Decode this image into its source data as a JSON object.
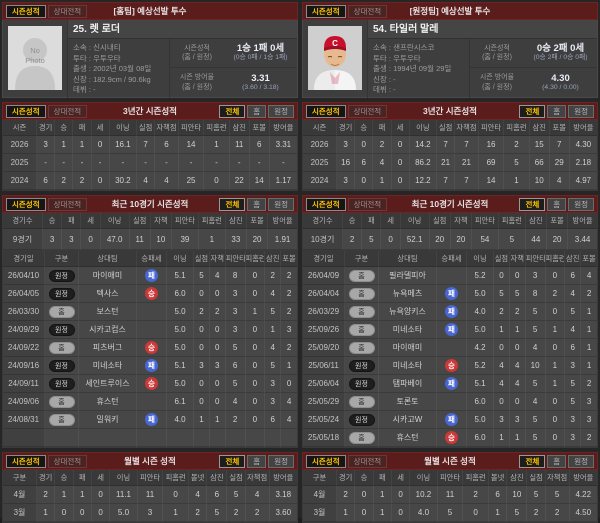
{
  "ui": {
    "tabs": {
      "season": "시즌성적",
      "h2h": "상대전적"
    },
    "filters": {
      "all": "전체",
      "home": "홈",
      "away": "원정"
    },
    "sections": {
      "three_year": "3년간 시즌성적",
      "recent10": "최근 10경기 시즌성적",
      "monthly": "월별 시즌 성적"
    },
    "info_labels": {
      "season_record": "시즌성적",
      "era": "시즌 방어율",
      "home_away": "(홈 / 원정)"
    },
    "colors": {
      "accent_yellow": "#ffc400",
      "bar_maroon": "#5b1c1c",
      "win_red": "#cd3838",
      "lose_blue": "#4967d2"
    }
  },
  "panels": [
    {
      "header_title": "[홈팀] 예상선발 투수",
      "player": {
        "name": "25. 렛 로더",
        "photo_placeholder": "No\nPhoto",
        "details": [
          {
            "label": "소속",
            "value": "신시내티"
          },
          {
            "label": "투타",
            "value": "우투우타"
          },
          {
            "label": "출생",
            "value": "2002년 03월 08일"
          },
          {
            "label": "신장",
            "value": "182.9cm / 90.6kg"
          },
          {
            "label": "데뷔",
            "value": "-"
          }
        ],
        "season_record": {
          "main": "1승 1패 0세",
          "sub": "(0승 0패 / 1승 1패)"
        },
        "season_era": {
          "main": "3.31",
          "sub": "(3.60 / 3.18)"
        }
      },
      "three_year": {
        "headers": [
          "시즌",
          "경기",
          "승",
          "패",
          "세",
          "이닝",
          "실점",
          "자책점",
          "피안타",
          "피홈런",
          "삼진",
          "포볼",
          "방어율"
        ],
        "rows": [
          [
            "2026",
            "3",
            "1",
            "1",
            "0",
            "16.1",
            "7",
            "6",
            "14",
            "1",
            "11",
            "6",
            "3.31"
          ],
          [
            "2025",
            "-",
            "-",
            "-",
            "-",
            "-",
            "-",
            "-",
            "-",
            "-",
            "-",
            "-",
            "-"
          ],
          [
            "2024",
            "6",
            "2",
            "2",
            "0",
            "30.2",
            "4",
            "4",
            "25",
            "0",
            "22",
            "14",
            "1.17"
          ]
        ]
      },
      "recent_summary": {
        "headers": [
          "경기수",
          "승",
          "패",
          "세",
          "이닝",
          "실점",
          "자책",
          "피안타",
          "피홈런",
          "삼진",
          "포볼",
          "방어율"
        ],
        "rows": [
          [
            "9경기",
            "3",
            "3",
            "0",
            "47.0",
            "11",
            "10",
            "39",
            "1",
            "33",
            "20",
            "1.91"
          ]
        ]
      },
      "game_log": {
        "headers": [
          "경기일",
          "구분",
          "상대팀",
          "승패세",
          "이닝",
          "실점",
          "자책",
          "피안타",
          "피홈런",
          "삼진",
          "포볼"
        ],
        "types": [
          "",
          "venue",
          "",
          "result",
          "",
          "",
          "",
          "",
          "",
          "",
          ""
        ],
        "rows": [
          [
            "26/04/10",
            "원정",
            "마이애미",
            "패",
            "5.1",
            "5",
            "4",
            "8",
            "0",
            "2",
            "2"
          ],
          [
            "26/04/05",
            "원정",
            "텍사스",
            "승",
            "6.0",
            "0",
            "0",
            "3",
            "0",
            "4",
            "2"
          ],
          [
            "26/03/30",
            "홈",
            "보스턴",
            "",
            "5.0",
            "2",
            "2",
            "3",
            "1",
            "5",
            "2"
          ],
          [
            "24/09/29",
            "원정",
            "시카고컵스",
            "",
            "5.0",
            "0",
            "0",
            "3",
            "0",
            "1",
            "3"
          ],
          [
            "24/09/22",
            "홈",
            "피츠버그",
            "승",
            "5.0",
            "0",
            "0",
            "5",
            "0",
            "4",
            "2"
          ],
          [
            "24/09/16",
            "원정",
            "미네소타",
            "패",
            "5.1",
            "3",
            "3",
            "6",
            "0",
            "5",
            "1"
          ],
          [
            "24/09/11",
            "원정",
            "세인트루이스",
            "승",
            "5.0",
            "0",
            "0",
            "5",
            "0",
            "3",
            "0"
          ],
          [
            "24/09/06",
            "홈",
            "휴스턴",
            "",
            "6.1",
            "0",
            "0",
            "4",
            "0",
            "3",
            "4"
          ],
          [
            "24/08/31",
            "홈",
            "밀워키",
            "패",
            "4.0",
            "1",
            "1",
            "2",
            "0",
            "6",
            "4"
          ],
          [
            "",
            "",
            "",
            "",
            "",
            "",
            "",
            "",
            "",
            "",
            ""
          ]
        ]
      },
      "monthly": {
        "headers": [
          "구분",
          "경기",
          "승",
          "패",
          "세",
          "이닝",
          "피안타",
          "피홈런",
          "볼넷",
          "삼진",
          "실점",
          "자책점",
          "방어율"
        ],
        "rows": [
          [
            "4월",
            "2",
            "1",
            "1",
            "0",
            "11.1",
            "11",
            "0",
            "4",
            "6",
            "5",
            "4",
            "3.18"
          ],
          [
            "3월",
            "1",
            "0",
            "0",
            "0",
            "5.0",
            "3",
            "1",
            "2",
            "5",
            "2",
            "2",
            "3.60"
          ]
        ]
      }
    },
    {
      "header_title": "[원정팀] 예상선발 투수",
      "player": {
        "name": "54. 타일러 말레",
        "photo_placeholder": "",
        "details": [
          {
            "label": "소속",
            "value": "샌프란시스코"
          },
          {
            "label": "투타",
            "value": "우투우타"
          },
          {
            "label": "출생",
            "value": "1994년 09월 29일"
          },
          {
            "label": "신장",
            "value": "-"
          },
          {
            "label": "데뷔",
            "value": "-"
          }
        ],
        "season_record": {
          "main": "0승 2패 0세",
          "sub": "(0승 2패 / 0승 0패)"
        },
        "season_era": {
          "main": "4.30",
          "sub": "(4.30 / 0.00)"
        }
      },
      "three_year": {
        "headers": [
          "시즌",
          "경기",
          "승",
          "패",
          "세",
          "이닝",
          "실점",
          "자책점",
          "피안타",
          "피홈런",
          "삼진",
          "포볼",
          "방어율"
        ],
        "rows": [
          [
            "2026",
            "3",
            "0",
            "2",
            "0",
            "14.2",
            "7",
            "7",
            "16",
            "2",
            "15",
            "7",
            "4.30"
          ],
          [
            "2025",
            "16",
            "6",
            "4",
            "0",
            "86.2",
            "21",
            "21",
            "69",
            "5",
            "66",
            "29",
            "2.18"
          ],
          [
            "2024",
            "3",
            "0",
            "1",
            "0",
            "12.2",
            "7",
            "7",
            "14",
            "1",
            "10",
            "4",
            "4.97"
          ]
        ]
      },
      "recent_summary": {
        "headers": [
          "경기수",
          "승",
          "패",
          "세",
          "이닝",
          "실점",
          "자책",
          "피안타",
          "피홈런",
          "삼진",
          "포볼",
          "방어율"
        ],
        "rows": [
          [
            "10경기",
            "2",
            "5",
            "0",
            "52.1",
            "20",
            "20",
            "54",
            "5",
            "44",
            "20",
            "3.44"
          ]
        ]
      },
      "game_log": {
        "headers": [
          "경기일",
          "구분",
          "상대팀",
          "승패세",
          "이닝",
          "실점",
          "자책",
          "피안타",
          "피홈런",
          "삼진",
          "포볼"
        ],
        "types": [
          "",
          "venue",
          "",
          "result",
          "",
          "",
          "",
          "",
          "",
          "",
          ""
        ],
        "rows": [
          [
            "26/04/09",
            "홈",
            "필라델피아",
            "",
            "5.2",
            "0",
            "0",
            "3",
            "0",
            "6",
            "4"
          ],
          [
            "26/04/04",
            "홈",
            "뉴욕메츠",
            "패",
            "5.0",
            "5",
            "5",
            "8",
            "2",
            "4",
            "2"
          ],
          [
            "26/03/29",
            "홈",
            "뉴욕양키스",
            "패",
            "4.0",
            "2",
            "2",
            "5",
            "0",
            "5",
            "1"
          ],
          [
            "25/09/26",
            "홈",
            "미네소타",
            "패",
            "5.0",
            "1",
            "1",
            "5",
            "1",
            "4",
            "1"
          ],
          [
            "25/09/20",
            "홈",
            "마이애미",
            "",
            "4.2",
            "0",
            "0",
            "4",
            "0",
            "6",
            "1"
          ],
          [
            "25/06/11",
            "원정",
            "미네소타",
            "승",
            "5.2",
            "4",
            "4",
            "10",
            "1",
            "3",
            "1"
          ],
          [
            "25/06/04",
            "원정",
            "탬파베이",
            "패",
            "5.1",
            "4",
            "4",
            "5",
            "1",
            "5",
            "2"
          ],
          [
            "25/05/29",
            "홈",
            "토론토",
            "",
            "6.0",
            "0",
            "0",
            "4",
            "0",
            "5",
            "3"
          ],
          [
            "25/05/24",
            "원정",
            "시카고W",
            "패",
            "5.0",
            "3",
            "3",
            "5",
            "0",
            "3",
            "3"
          ],
          [
            "25/05/18",
            "홈",
            "휴스턴",
            "승",
            "6.0",
            "1",
            "1",
            "5",
            "0",
            "3",
            "2"
          ]
        ]
      },
      "monthly": {
        "headers": [
          "구분",
          "경기",
          "승",
          "패",
          "세",
          "이닝",
          "피안타",
          "피홈런",
          "볼넷",
          "삼진",
          "실점",
          "자책점",
          "방어율"
        ],
        "rows": [
          [
            "4월",
            "2",
            "0",
            "1",
            "0",
            "10.2",
            "11",
            "2",
            "6",
            "10",
            "5",
            "5",
            "4.22"
          ],
          [
            "3월",
            "1",
            "0",
            "1",
            "0",
            "4.0",
            "5",
            "0",
            "1",
            "5",
            "2",
            "2",
            "4.50"
          ]
        ]
      }
    }
  ]
}
